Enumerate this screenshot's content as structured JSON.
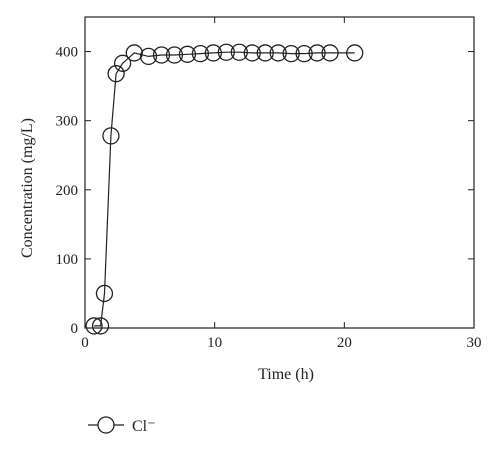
{
  "chart_data": {
    "type": "line",
    "xlabel": "Time (h)",
    "ylabel": "Concentration (mg/L)",
    "xlim": [
      0,
      30
    ],
    "ylim": [
      0,
      450
    ],
    "xticks": [
      0,
      10,
      20,
      30
    ],
    "yticks": [
      0,
      100,
      200,
      300,
      400
    ],
    "grid": false,
    "legend": {
      "position": "bottom-left",
      "marker": "open-circle"
    },
    "series": [
      {
        "name": "Cl⁻",
        "marker": "open-circle",
        "color": "#222222",
        "x": [
          0.7,
          1.2,
          1.5,
          2.0,
          2.4,
          2.9,
          3.8,
          4.9,
          5.9,
          6.9,
          7.9,
          8.9,
          9.9,
          10.9,
          11.9,
          12.9,
          13.9,
          14.9,
          15.9,
          16.9,
          17.9,
          18.9,
          20.8
        ],
        "y": [
          3,
          3,
          50,
          278,
          368,
          383,
          398,
          393,
          395,
          395,
          396,
          397,
          398,
          399,
          399,
          398,
          398,
          398,
          397,
          397,
          398,
          398,
          398
        ]
      }
    ]
  }
}
